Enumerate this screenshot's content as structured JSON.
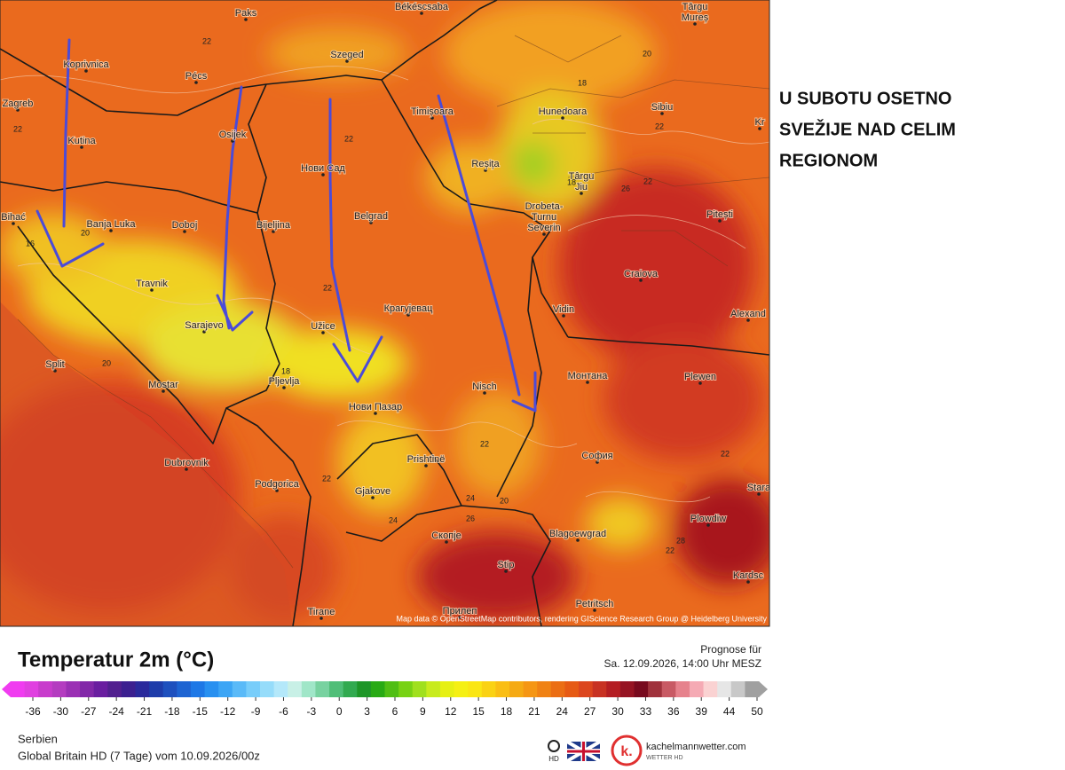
{
  "annotation": [
    "U SUBOTU OSETNO",
    "SVEŽIJE NAD CELIM",
    "REGIONOM"
  ],
  "map": {
    "cities": [
      [
        "Paks"
      ],
      [
        "Békéscsaba"
      ],
      [
        "Târgu",
        "Mureș"
      ],
      [
        "Koprivnica"
      ],
      [
        "Pécs"
      ],
      [
        "Szeged"
      ],
      [
        "Zagreb"
      ],
      [
        "Osijek"
      ],
      [
        "Timișoara"
      ],
      [
        "Hunedoara"
      ],
      [
        "Sibiu"
      ],
      [
        "Kr"
      ],
      [
        "Kutina"
      ],
      [
        "Нови Сад"
      ],
      [
        "Reșița"
      ],
      [
        "Târgu",
        "Jiu"
      ],
      [
        "Pitești"
      ],
      [
        "Bihać"
      ],
      [
        "Banja Luka"
      ],
      [
        "Doboj"
      ],
      [
        "Bijeljina"
      ],
      [
        "Belgrad"
      ],
      [
        "Drobeta-",
        "Turnu",
        "Severin"
      ],
      [
        "Travnik"
      ],
      [
        "Craiova"
      ],
      [
        "Alexand"
      ],
      [
        "Sarajevo"
      ],
      [
        "Užice"
      ],
      [
        "Крагујевац"
      ],
      [
        "Vidin"
      ],
      [
        "Split"
      ],
      [
        "Mostar"
      ],
      [
        "Pljevlja"
      ],
      [
        "Монтана"
      ],
      [
        "Plewen"
      ],
      [
        "Nisch"
      ],
      [
        "Нови Пазар"
      ],
      [
        "Dubrovnik"
      ],
      [
        "Prishtinë"
      ],
      [
        "София"
      ],
      [
        "Podgorica"
      ],
      [
        "Gjakove"
      ],
      [
        "Plowdiw"
      ],
      [
        "Скопје"
      ],
      [
        "Blagoewgrad"
      ],
      [
        "Stip"
      ],
      [
        "Kardsc"
      ],
      [
        "Tirane"
      ],
      [
        "Прилеп"
      ],
      [
        "Petritsch"
      ],
      [
        "Stara"
      ]
    ],
    "contour_labels": [
      "22",
      "22",
      "22",
      "22",
      "22",
      "22",
      "22",
      "22",
      "22",
      "20",
      "20",
      "20",
      "20",
      "18",
      "18",
      "18",
      "16",
      "24",
      "24",
      "26",
      "26",
      "28",
      "22"
    ],
    "attribution": "Map data © OpenStreetMap contributors, rendering GIScience Research Group @ Heidelberg University"
  },
  "legend": {
    "title": "Temperatur 2m (°C)",
    "forecast_label": "Prognose für",
    "forecast_time": "Sa. 12.09.2026, 14:00 Uhr MESZ",
    "ticks": [
      -36,
      -30,
      -27,
      -24,
      -21,
      -18,
      -15,
      -12,
      -9,
      -6,
      -3,
      0,
      3,
      6,
      9,
      12,
      15,
      18,
      21,
      24,
      27,
      30,
      33,
      36,
      39,
      44,
      50
    ],
    "colors": [
      "#f03cf0",
      "#e040e0",
      "#c83ccc",
      "#b43cc0",
      "#9b30b4",
      "#8228a8",
      "#6a1ea0",
      "#52208f",
      "#3c2090",
      "#2a2a9c",
      "#1e3caa",
      "#1e50be",
      "#1e64d2",
      "#1e78e6",
      "#2890f0",
      "#3ca5f5",
      "#5abaf8",
      "#78cdfa",
      "#96dcfa",
      "#b4e8fa",
      "#c8f0e6",
      "#a0e6c8",
      "#78d2a0",
      "#50be78",
      "#32aa50",
      "#1e9628",
      "#28aa14",
      "#50be14",
      "#78d214",
      "#a0e01e",
      "#c8eb1e",
      "#e6f014",
      "#f5f014",
      "#fae614",
      "#fad214",
      "#fabe14",
      "#f5aa14",
      "#f59614",
      "#f08214",
      "#eb6e14",
      "#e65a14",
      "#dc461e",
      "#c83223",
      "#b41e23",
      "#961423",
      "#780a1e",
      "#a0323c",
      "#c85a64",
      "#e6828c",
      "#f5aab4",
      "#fad2d2",
      "#e6e6e6",
      "#c8c8c8",
      "#a0a0a0"
    ]
  },
  "footer": {
    "region": "Serbien",
    "model": "Global Britain HD (7 Tage) vom 10.09.2026/00z",
    "hd": "HD",
    "logo_letter": "k.",
    "brand": "kachelmannwetter.com",
    "brand_sub": "WETTER HD"
  }
}
